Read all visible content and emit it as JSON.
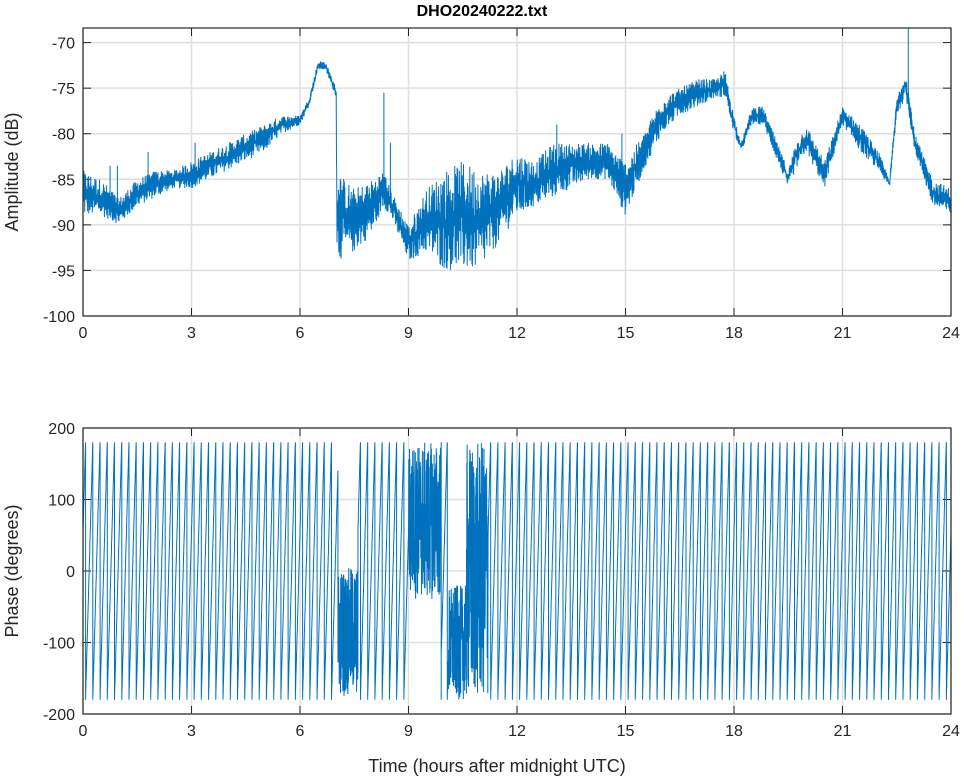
{
  "chart_data": [
    {
      "type": "line",
      "title": "DHO20240222.txt",
      "xlabel": "",
      "ylabel": "Amplitude (dB)",
      "xlim": [
        0,
        24
      ],
      "ylim": [
        -100,
        -68.4
      ],
      "xticks": [
        0,
        3,
        6,
        9,
        12,
        15,
        18,
        21,
        24
      ],
      "yticks": [
        -100,
        -95,
        -90,
        -85,
        -80,
        -75,
        -70
      ],
      "grid": true,
      "color": "#0072BD",
      "series_envelope": {
        "columns": [
          "hour",
          "min_dB",
          "max_dB"
        ],
        "points": [
          [
            0,
            -89,
            -84
          ],
          [
            0.5,
            -89,
            -85
          ],
          [
            1,
            -90,
            -87
          ],
          [
            1.5,
            -88,
            -85
          ],
          [
            2,
            -87,
            -84
          ],
          [
            2.5,
            -86,
            -84
          ],
          [
            3,
            -86,
            -83
          ],
          [
            3.5,
            -85,
            -82
          ],
          [
            4,
            -84,
            -81
          ],
          [
            4.5,
            -83,
            -80
          ],
          [
            5,
            -82,
            -79
          ],
          [
            5.5,
            -80,
            -78
          ],
          [
            6,
            -79,
            -78
          ],
          [
            6.25,
            -77,
            -76
          ],
          [
            6.5,
            -73,
            -72
          ],
          [
            6.7,
            -73,
            -72
          ],
          [
            7,
            -76,
            -75
          ],
          [
            7.02,
            -94,
            -84
          ],
          [
            7.5,
            -93,
            -86
          ],
          [
            8,
            -91,
            -85
          ],
          [
            8.3,
            -88,
            -84
          ],
          [
            8.5,
            -89,
            -86
          ],
          [
            9,
            -94,
            -90
          ],
          [
            9.5,
            -93,
            -86
          ],
          [
            10,
            -95,
            -84
          ],
          [
            10.5,
            -95,
            -83
          ],
          [
            11,
            -95,
            -84
          ],
          [
            11.5,
            -92,
            -84
          ],
          [
            12,
            -89,
            -82
          ],
          [
            12.5,
            -88,
            -83
          ],
          [
            13,
            -87,
            -81
          ],
          [
            13.5,
            -86,
            -81
          ],
          [
            14,
            -85,
            -81
          ],
          [
            14.5,
            -85,
            -81
          ],
          [
            15,
            -89,
            -83
          ],
          [
            15.5,
            -84,
            -80
          ],
          [
            16,
            -80,
            -76
          ],
          [
            16.5,
            -78,
            -75
          ],
          [
            17,
            -77,
            -74
          ],
          [
            17.5,
            -76,
            -74
          ],
          [
            17.75,
            -76,
            -73
          ],
          [
            18,
            -80,
            -78
          ],
          [
            18.2,
            -82,
            -81
          ],
          [
            18.5,
            -79,
            -77
          ],
          [
            18.8,
            -79,
            -77
          ],
          [
            19,
            -81,
            -79
          ],
          [
            19.5,
            -86,
            -84
          ],
          [
            19.7,
            -84,
            -81
          ],
          [
            20,
            -82,
            -79
          ],
          [
            20.5,
            -86,
            -83
          ],
          [
            21,
            -79,
            -77
          ],
          [
            21.5,
            -82,
            -79
          ],
          [
            22,
            -84,
            -82
          ],
          [
            22.3,
            -86,
            -85
          ],
          [
            22.5,
            -78,
            -76
          ],
          [
            22.75,
            -76,
            -73
          ],
          [
            23,
            -82,
            -80
          ],
          [
            23.5,
            -88,
            -85
          ],
          [
            24,
            -89,
            -86
          ]
        ]
      },
      "spikes": [
        [
          0.75,
          -83.5
        ],
        [
          0.95,
          -83.5
        ],
        [
          1.8,
          -82
        ],
        [
          3.1,
          -81
        ],
        [
          8.32,
          -75.5
        ],
        [
          8.5,
          -81
        ],
        [
          13.1,
          -79
        ],
        [
          14.9,
          -80
        ],
        [
          22.82,
          -68.4
        ]
      ]
    },
    {
      "type": "line",
      "title": "",
      "xlabel": "Time (hours after midnight UTC)",
      "ylabel": "Phase (degrees)",
      "xlim": [
        0,
        24
      ],
      "ylim": [
        -200,
        200
      ],
      "xticks": [
        0,
        3,
        6,
        9,
        12,
        15,
        18,
        21,
        24
      ],
      "yticks": [
        -200,
        -100,
        0,
        100,
        200
      ],
      "grid": true,
      "color": "#0072BD",
      "sawtooth": {
        "period_hours": 0.2,
        "min_deg": -180,
        "max_deg": 180
      },
      "disturbed_segments": [
        {
          "start": 7.05,
          "end": 7.6,
          "min_deg": -175,
          "max_deg": 5
        },
        {
          "start": 9.0,
          "end": 9.9,
          "min_deg": -40,
          "max_deg": 180
        },
        {
          "start": 10.1,
          "end": 10.6,
          "min_deg": -180,
          "max_deg": -20
        },
        {
          "start": 10.6,
          "end": 11.2,
          "min_deg": -180,
          "max_deg": 180
        }
      ]
    }
  ]
}
